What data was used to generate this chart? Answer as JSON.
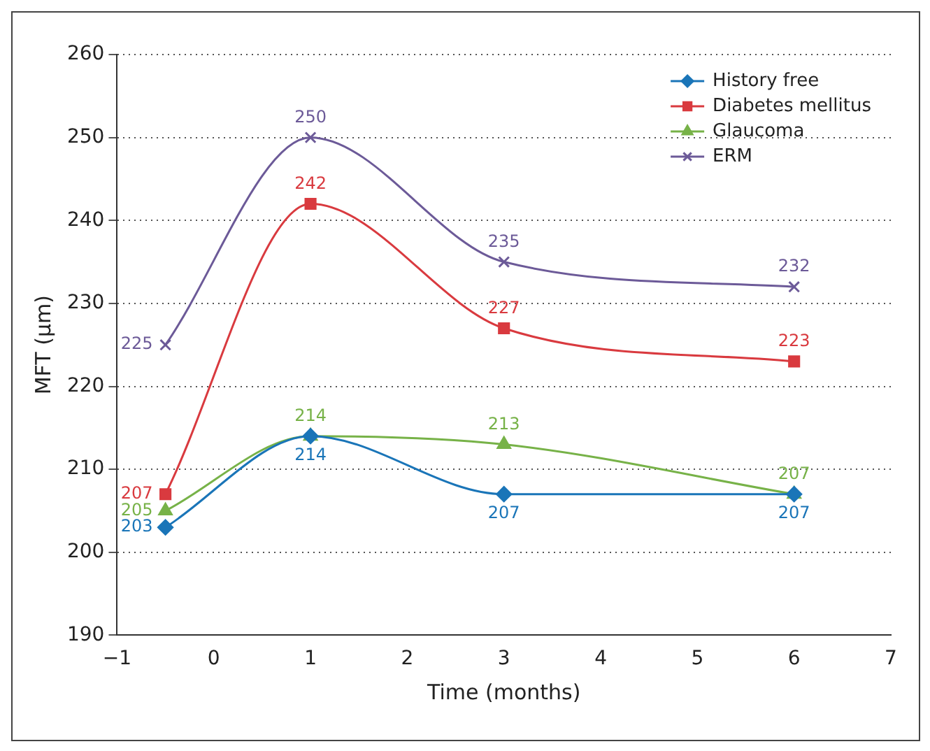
{
  "chart_data": {
    "type": "line",
    "xlabel": "Time (months)",
    "ylabel": "MFT (µm)",
    "x": [
      -0.5,
      1,
      3,
      6
    ],
    "series": [
      {
        "name": "History free",
        "color": "#1a75b8",
        "values": [
          203,
          214,
          207,
          207
        ],
        "marker": "diamond"
      },
      {
        "name": "Diabetes mellitus",
        "color": "#d93a3f",
        "values": [
          207,
          242,
          227,
          223
        ],
        "marker": "square"
      },
      {
        "name": "Glaucoma",
        "color": "#77b248",
        "values": [
          205,
          214,
          213,
          207
        ],
        "marker": "triangle"
      },
      {
        "name": "ERM",
        "color": "#6c5a98",
        "values": [
          225,
          250,
          235,
          232
        ],
        "marker": "cross"
      }
    ],
    "xlim": [
      -1,
      7
    ],
    "xticks": [
      {
        "value": -1,
        "label": "−1"
      },
      0,
      1,
      2,
      3,
      4,
      5,
      6,
      7
    ],
    "ylim": [
      190,
      260
    ],
    "yticks": [
      190,
      200,
      210,
      220,
      230,
      240,
      250,
      260
    ],
    "grid": "y",
    "legend": "top right",
    "data_labels": true
  }
}
